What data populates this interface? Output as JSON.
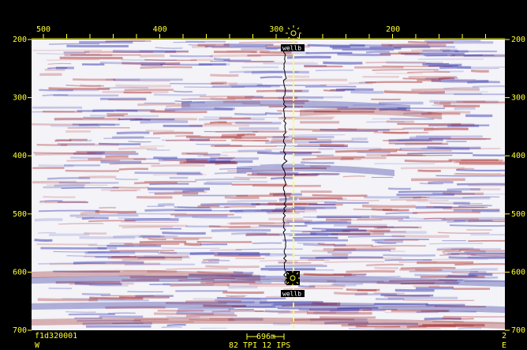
{
  "top_axis": {
    "labels": [
      "500",
      "400",
      "300",
      "200"
    ]
  },
  "left_axis": {
    "labels": [
      "200",
      "300",
      "400",
      "500",
      "600",
      "700"
    ]
  },
  "right_axis": {
    "labels": [
      "200",
      "300",
      "400",
      "500",
      "600",
      "700"
    ]
  },
  "wells": [
    {
      "label": "wellb"
    },
    {
      "label": "wellb"
    }
  ],
  "footer": {
    "line_name": "f1d320001",
    "west": "W",
    "scale": "696m",
    "plot_scale": "82 TPI 12 IPS",
    "end_label": "2",
    "east": "E"
  }
}
